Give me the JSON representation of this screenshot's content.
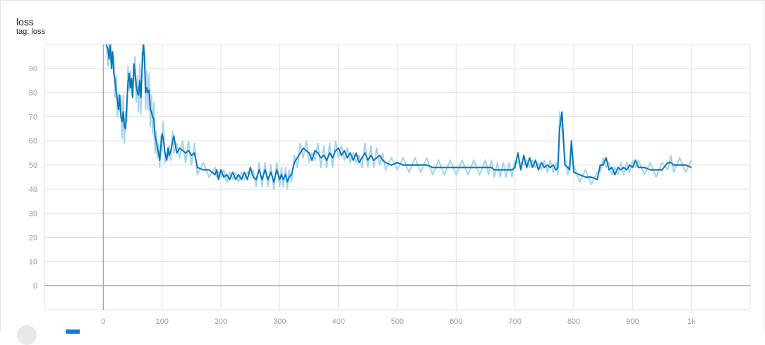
{
  "card": {
    "title": "loss",
    "subtitle": "tag: loss"
  },
  "colors": {
    "raw_series": "#a6d3ea",
    "smoothed_series": "#0877b9",
    "grid": "#e0e0e0",
    "axis_zero": "#9e9e9e",
    "tick_text": "#9e9e9e"
  },
  "icons": {
    "bottom_left_button": "circle-button",
    "legend_toggle": "series-swatch"
  },
  "chart_data": {
    "type": "line",
    "title": "loss",
    "subtitle": "tag: loss",
    "xlabel": "",
    "ylabel": "",
    "xlim": [
      -100,
      1100
    ],
    "ylim": [
      -10,
      100
    ],
    "grid": true,
    "x_ticks": [
      0,
      100,
      200,
      300,
      400,
      500,
      600,
      700,
      800,
      900,
      1000
    ],
    "x_tick_labels": [
      "0",
      "100",
      "200",
      "300",
      "400",
      "500",
      "600",
      "700",
      "800",
      "900",
      "1k"
    ],
    "y_ticks": [
      0,
      10,
      20,
      30,
      40,
      50,
      60,
      70,
      80,
      90
    ],
    "y_tick_labels": [
      "0",
      "10",
      "20",
      "30",
      "40",
      "50",
      "60",
      "70",
      "80",
      "90"
    ],
    "series": [
      {
        "values_x": [
          5,
          8,
          10,
          12,
          14,
          16,
          18,
          20,
          22,
          24,
          26,
          28,
          30,
          32,
          34,
          36,
          38,
          40,
          42,
          44,
          46,
          48,
          50,
          52,
          54,
          56,
          58,
          60,
          62,
          64,
          66,
          68,
          70,
          72,
          74,
          76,
          78,
          80,
          82,
          84,
          86,
          88,
          90,
          92,
          94,
          96,
          98,
          100,
          102,
          105,
          108,
          110,
          112,
          115,
          118,
          120,
          125,
          130,
          135,
          140,
          145,
          150,
          155,
          160,
          170,
          180,
          190,
          193,
          196,
          200,
          205,
          210,
          215,
          220,
          225,
          230,
          235,
          240,
          245,
          250,
          255,
          260,
          265,
          270,
          275,
          280,
          285,
          290,
          295,
          300,
          303,
          306,
          310,
          313,
          316,
          320,
          325,
          330,
          335,
          340,
          345,
          350,
          355,
          360,
          365,
          370,
          375,
          380,
          385,
          390,
          395,
          400,
          405,
          410,
          415,
          420,
          425,
          430,
          435,
          440,
          445,
          450,
          455,
          460,
          465,
          470,
          475,
          480,
          490,
          500,
          510,
          520,
          530,
          540,
          550,
          560,
          570,
          580,
          590,
          600,
          610,
          620,
          630,
          640,
          650,
          655,
          660,
          665,
          670,
          675,
          680,
          685,
          690,
          695,
          700,
          705,
          710,
          715,
          720,
          725,
          730,
          735,
          740,
          745,
          750,
          755,
          760,
          765,
          770,
          773,
          776,
          780,
          785,
          790,
          793,
          796,
          800,
          810,
          820,
          830,
          840,
          845,
          850,
          855,
          860,
          865,
          870,
          875,
          880,
          885,
          890,
          895,
          900,
          905,
          910,
          920,
          930,
          940,
          950,
          960,
          965,
          970,
          980,
          990,
          1000
        ],
        "values_y": [
          100,
          98,
          94,
          100,
          90,
          97,
          88,
          85,
          80,
          77,
          73,
          79,
          70,
          68,
          72,
          66,
          65,
          75,
          84,
          88,
          82,
          86,
          78,
          92,
          88,
          83,
          80,
          79,
          85,
          78,
          90,
          100,
          95,
          80,
          82,
          80,
          81,
          73,
          72,
          70,
          69,
          62,
          60,
          57,
          55,
          52,
          58,
          63,
          61,
          55,
          52,
          57,
          54,
          56,
          60,
          62,
          55,
          57,
          56,
          55,
          56,
          54,
          55,
          49,
          48,
          48,
          46,
          48,
          44,
          48,
          45,
          46,
          44,
          47,
          44,
          46,
          44,
          47,
          44,
          49,
          45,
          44,
          48,
          44,
          48,
          44,
          47,
          43,
          48,
          44,
          46,
          44,
          46,
          43,
          45,
          46,
          51,
          53,
          55,
          57,
          56,
          55,
          52,
          56,
          55,
          53,
          54,
          52,
          55,
          53,
          56,
          57,
          54,
          56,
          53,
          55,
          52,
          55,
          51,
          53,
          55,
          52,
          54,
          52,
          53,
          54,
          52,
          51,
          50,
          51,
          50,
          50,
          50,
          50,
          50,
          49,
          49,
          49,
          49,
          49,
          49,
          49,
          49,
          49,
          49,
          49,
          49,
          48,
          48,
          48,
          48,
          48,
          48,
          48,
          49,
          55,
          48,
          54,
          49,
          53,
          49,
          52,
          48,
          51,
          49,
          50,
          49,
          50,
          48,
          49,
          65,
          72,
          50,
          49,
          48,
          60,
          47,
          46,
          45,
          45,
          44,
          50,
          50,
          53,
          48,
          49,
          46,
          49,
          48,
          49,
          48,
          50,
          49,
          52,
          49,
          49,
          48,
          48,
          48,
          51,
          51,
          50,
          50,
          50,
          49
        ]
      }
    ]
  }
}
